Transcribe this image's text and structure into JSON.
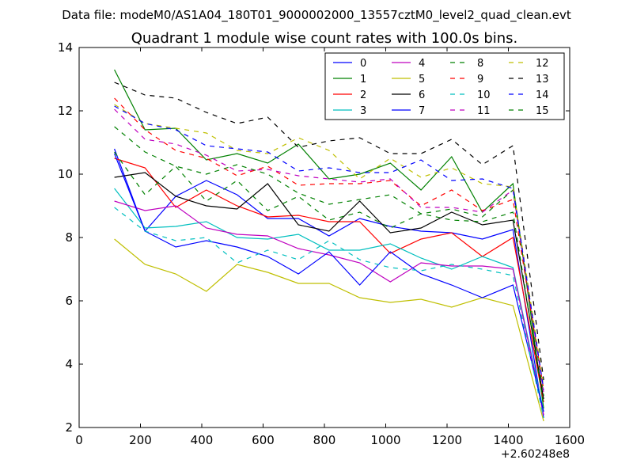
{
  "chart_data": {
    "type": "line",
    "suptitle": "Data file: modeM0/AS1A04_180T01_9000002000_13557cztM0_level2_quad_clean.evt",
    "title": "Quadrant 1 module wise count rates with 100.0s bins.",
    "xlabel": "",
    "ylabel": "",
    "x_offset_label": "+2.60248e8",
    "xlim": [
      0,
      1600
    ],
    "ylim": [
      2,
      14
    ],
    "xticks": [
      0,
      200,
      400,
      600,
      800,
      1000,
      1200,
      1400,
      1600
    ],
    "yticks": [
      2,
      4,
      6,
      8,
      10,
      12,
      14
    ],
    "grid": false,
    "legend": "top-right",
    "x": [
      115,
      215,
      315,
      415,
      515,
      615,
      715,
      815,
      915,
      1015,
      1115,
      1215,
      1315,
      1415,
      1515
    ],
    "series": [
      {
        "name": "0",
        "color": "#0000ff",
        "dash": "solid",
        "values": [
          10.8,
          8.2,
          9.3,
          9.8,
          9.35,
          8.6,
          8.6,
          8.05,
          8.6,
          8.35,
          8.2,
          8.15,
          7.95,
          8.25,
          2.3
        ]
      },
      {
        "name": "1",
        "color": "#008000",
        "dash": "solid",
        "values": [
          13.3,
          11.4,
          11.45,
          10.45,
          10.65,
          10.35,
          10.95,
          9.85,
          10.0,
          10.35,
          9.5,
          10.55,
          8.8,
          9.7,
          2.6
        ]
      },
      {
        "name": "2",
        "color": "#ff0000",
        "dash": "solid",
        "values": [
          10.5,
          10.2,
          8.95,
          9.5,
          9.0,
          8.65,
          8.7,
          8.5,
          8.5,
          7.5,
          7.95,
          8.15,
          7.4,
          8.0,
          2.8
        ]
      },
      {
        "name": "3",
        "color": "#00bfbf",
        "dash": "solid",
        "values": [
          9.55,
          8.3,
          8.35,
          8.5,
          8.0,
          7.95,
          8.1,
          7.6,
          7.6,
          7.8,
          7.35,
          7.0,
          7.4,
          7.05,
          2.5
        ]
      },
      {
        "name": "4",
        "color": "#bf00bf",
        "dash": "solid",
        "values": [
          9.15,
          8.85,
          9.0,
          8.3,
          8.1,
          8.05,
          7.65,
          7.45,
          7.2,
          6.6,
          7.2,
          7.1,
          7.1,
          7.0,
          2.4
        ]
      },
      {
        "name": "5",
        "color": "#bfbf00",
        "dash": "solid",
        "values": [
          7.95,
          7.15,
          6.85,
          6.3,
          7.15,
          6.9,
          6.55,
          6.55,
          6.1,
          5.95,
          6.05,
          5.8,
          6.1,
          5.85,
          2.2
        ]
      },
      {
        "name": "6",
        "color": "#000000",
        "dash": "solid",
        "values": [
          9.9,
          10.05,
          9.3,
          9.0,
          8.9,
          9.7,
          8.4,
          8.2,
          9.15,
          8.15,
          8.3,
          8.8,
          8.4,
          8.55,
          2.9
        ]
      },
      {
        "name": "7",
        "color": "#0000ff",
        "dash": "solid",
        "values": [
          10.65,
          8.2,
          7.7,
          7.9,
          7.7,
          7.4,
          6.85,
          7.55,
          6.5,
          7.55,
          6.85,
          6.5,
          6.1,
          6.5,
          2.5
        ]
      },
      {
        "name": "8",
        "color": "#008000",
        "dash": "dashed",
        "values": [
          10.7,
          9.35,
          10.25,
          9.15,
          9.8,
          8.85,
          9.3,
          8.55,
          8.8,
          8.3,
          8.75,
          8.9,
          8.65,
          9.5,
          3.0
        ]
      },
      {
        "name": "9",
        "color": "#ff0000",
        "dash": "dashed",
        "values": [
          12.4,
          11.4,
          10.75,
          10.5,
          9.95,
          10.25,
          9.65,
          9.7,
          9.7,
          9.8,
          9.0,
          9.5,
          8.85,
          9.2,
          3.2
        ]
      },
      {
        "name": "10",
        "color": "#00bfbf",
        "dash": "dashed",
        "values": [
          8.95,
          8.2,
          7.9,
          8.0,
          7.2,
          7.6,
          7.3,
          7.9,
          7.3,
          7.05,
          6.95,
          7.15,
          7.0,
          6.8,
          2.3
        ]
      },
      {
        "name": "11",
        "color": "#bf00bf",
        "dash": "dashed",
        "values": [
          12.05,
          11.1,
          10.95,
          10.6,
          10.1,
          10.15,
          9.95,
          9.85,
          9.75,
          9.85,
          8.95,
          8.95,
          8.8,
          9.5,
          3.1
        ]
      },
      {
        "name": "12",
        "color": "#bfbf00",
        "dash": "dashed",
        "values": [
          12.2,
          11.6,
          11.45,
          11.3,
          10.75,
          10.65,
          11.15,
          10.75,
          9.85,
          10.5,
          9.9,
          10.2,
          9.7,
          9.6,
          3.3
        ]
      },
      {
        "name": "13",
        "color": "#000000",
        "dash": "dashed",
        "values": [
          12.9,
          12.5,
          12.4,
          11.95,
          11.6,
          11.8,
          10.85,
          11.05,
          11.15,
          10.65,
          10.65,
          11.1,
          10.3,
          10.9,
          3.5
        ]
      },
      {
        "name": "14",
        "color": "#0000ff",
        "dash": "dashed",
        "values": [
          12.15,
          11.6,
          11.4,
          10.9,
          10.8,
          10.7,
          10.1,
          10.2,
          10.05,
          10.05,
          10.45,
          9.8,
          9.85,
          9.55,
          3.2
        ]
      },
      {
        "name": "15",
        "color": "#008000",
        "dash": "dashed",
        "values": [
          11.5,
          10.7,
          10.25,
          10.0,
          10.3,
          10.0,
          9.4,
          9.05,
          9.2,
          9.35,
          8.75,
          8.55,
          8.5,
          8.8,
          2.7
        ]
      }
    ]
  }
}
